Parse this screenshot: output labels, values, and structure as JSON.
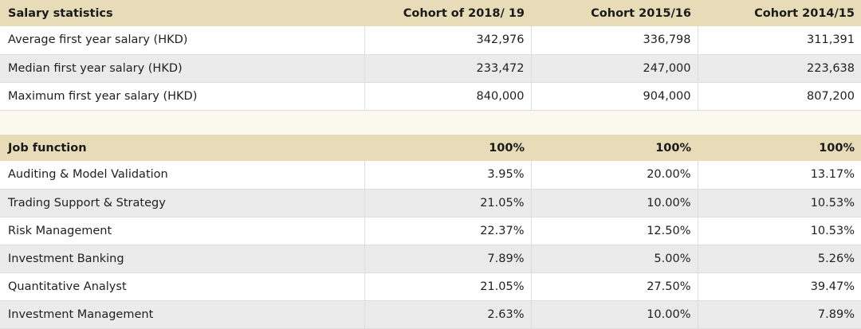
{
  "salary": {
    "header": [
      "Salary statistics",
      "Cohort of 2018/ 19",
      "Cohort 2015/16",
      "Cohort 2014/15"
    ],
    "rows": [
      [
        "Average first year salary (HKD)",
        "342,976",
        "336,798",
        "311,391"
      ],
      [
        "Median first year salary (HKD)",
        "233,472",
        "247,000",
        "223,638"
      ],
      [
        "Maximum first year salary (HKD)",
        "840,000",
        "904,000",
        "807,200"
      ]
    ]
  },
  "jobs": {
    "header": [
      "Job function",
      "100%",
      "100%",
      "100%"
    ],
    "rows": [
      [
        "Auditing & Model Validation",
        "3.95%",
        "20.00%",
        "13.17%"
      ],
      [
        "Trading Support & Strategy",
        "21.05%",
        "10.00%",
        "10.53%"
      ],
      [
        "Risk Management",
        "22.37%",
        "12.50%",
        "10.53%"
      ],
      [
        "Investment Banking",
        "7.89%",
        "5.00%",
        "5.26%"
      ],
      [
        "Quantitative Analyst",
        "21.05%",
        "27.50%",
        "39.47%"
      ],
      [
        "Investment Management",
        "2.63%",
        "10.00%",
        "7.89%"
      ]
    ]
  },
  "colors": {
    "header_bg": "#e8dcb8",
    "spacer_bg": "#fbf8ed",
    "stripe_bg": "#ebebeb",
    "border": "#dddddd"
  }
}
